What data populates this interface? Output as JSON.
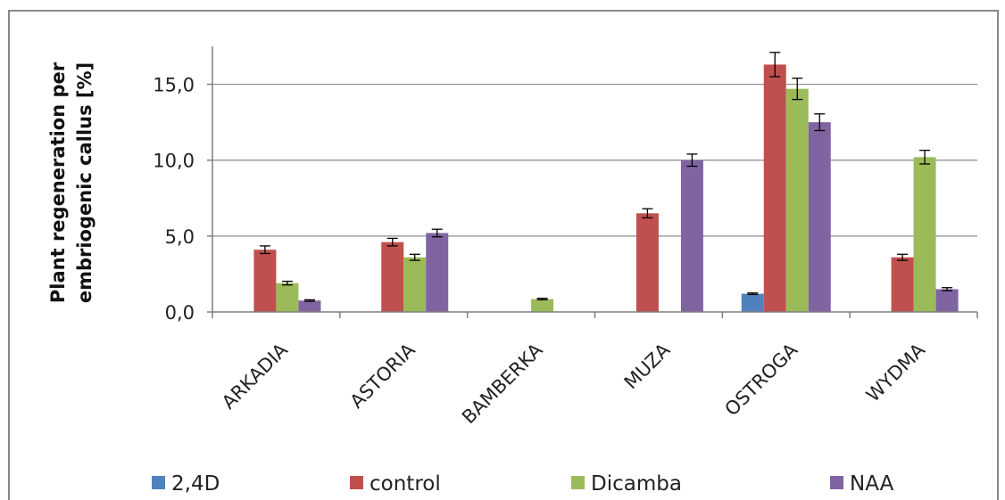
{
  "chart_data": {
    "type": "bar",
    "title": "",
    "xlabel": "",
    "ylabel": "Plant regeneration per embriogenic callus [%]",
    "ylabel_lines": [
      "Plant regeneration per",
      "embriogenic callus [%]"
    ],
    "categories": [
      "ARKADIA",
      "ASTORIA",
      "BAMBERKA",
      "MUZA",
      "OSTROGA",
      "WYDMA"
    ],
    "series": [
      {
        "name": "2,4D",
        "color": "#4f81bd",
        "values": [
          0,
          0,
          0,
          0,
          1.2,
          0
        ],
        "errors": [
          0,
          0,
          0,
          0,
          0.05,
          0
        ]
      },
      {
        "name": "control",
        "color": "#c0504d",
        "values": [
          4.1,
          4.6,
          0,
          6.5,
          16.3,
          3.6
        ],
        "errors": [
          0.25,
          0.25,
          0,
          0.3,
          0.8,
          0.2
        ]
      },
      {
        "name": "Dicamba",
        "color": "#9bbb59",
        "values": [
          1.9,
          3.6,
          0.85,
          0,
          14.7,
          10.2
        ],
        "errors": [
          0.12,
          0.2,
          0.05,
          0,
          0.7,
          0.45
        ]
      },
      {
        "name": "NAA",
        "color": "#8064a2",
        "values": [
          0.75,
          5.2,
          0,
          10.0,
          12.5,
          1.5
        ],
        "errors": [
          0.05,
          0.25,
          0,
          0.4,
          0.55,
          0.1
        ]
      }
    ],
    "yticks": [
      0,
      5,
      10,
      15
    ],
    "ytick_labels": [
      "0,0",
      "5,0",
      "10,0",
      "15,0"
    ],
    "ylim": [
      0,
      17.5
    ],
    "grid": true,
    "legend_position": "bottom"
  }
}
